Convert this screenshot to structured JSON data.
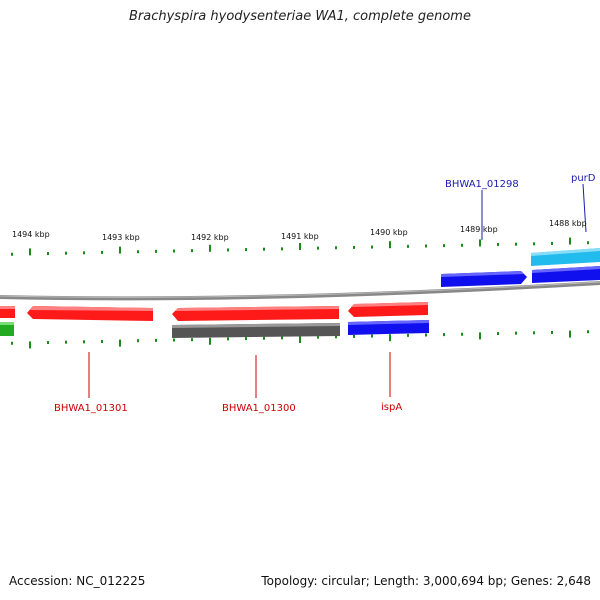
{
  "title": "Brachyspira hyodysenteriae WA1, complete genome",
  "footer": {
    "accession": "Accession: NC_012225",
    "summary": "Topology: circular; Length: 3,000,694 bp; Genes: 2,648"
  },
  "ticks": [
    "1494 kbp",
    "1493 kbp",
    "1492 kbp",
    "1491 kbp",
    "1490 kbp",
    "1489 kbp",
    "1488 kbp"
  ],
  "gene_labels": {
    "bhwa1_01298": "BHWA1_01298",
    "purd": "purD",
    "bhwa1_01301": "BHWA1_01301",
    "bhwa1_01300": "BHWA1_01300",
    "ispa": "ispA"
  },
  "colors": {
    "cds_red": "#ff1a1a",
    "gene_dark": "#555555",
    "cds_blue": "#1010ee",
    "cds_cyan": "#22bbee",
    "tick_green": "#1a8a1a",
    "label_blue": "#1a1ab0",
    "label_red": "#cc0000",
    "backbone": "#888888"
  }
}
